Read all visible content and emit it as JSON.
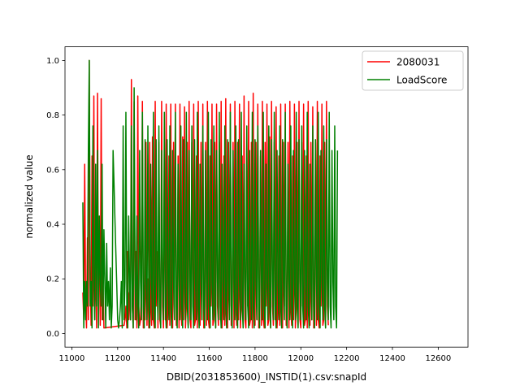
{
  "chart_data": {
    "type": "line",
    "title": "",
    "xlabel": "DBID(2031853600)_INSTID(1).csv:snapId",
    "ylabel": "normalized value",
    "xlim": [
      10970,
      12730
    ],
    "ylim": [
      -0.05,
      1.05
    ],
    "x_ticks": [
      11000,
      11200,
      11400,
      11600,
      11800,
      12000,
      12200,
      12400,
      12600
    ],
    "y_ticks": [
      0.0,
      0.2,
      0.4,
      0.6,
      0.8,
      1.0
    ],
    "x_tick_labels": [
      "11000",
      "11200",
      "11400",
      "11600",
      "11800",
      "12000",
      "12200",
      "12400",
      "12600"
    ],
    "y_tick_labels": [
      "0.0",
      "0.2",
      "0.4",
      "0.6",
      "0.8",
      "1.0"
    ],
    "grid": false,
    "legend_position": "top-right",
    "series": [
      {
        "name": "2080031",
        "color": "#ff0000",
        "x_start": 11048,
        "x_step": 4,
        "gaps": [
          [
            11140,
            11225
          ]
        ],
        "values": [
          0.15,
          0.05,
          0.62,
          0.12,
          0.02,
          0.35,
          0.05,
          1.0,
          0.2,
          0.03,
          0.65,
          0.1,
          0.87,
          0.05,
          0.3,
          0.02,
          0.88,
          0.1,
          0.4,
          0.03,
          0.86,
          0.05,
          0.2,
          0.02,
          0.82,
          0.1,
          0.05,
          0.3,
          0.02,
          0.78,
          0.05,
          0.1,
          0.02,
          0.65,
          0.05,
          0.2,
          0.02,
          0.05,
          0.1,
          0.02,
          0.03,
          0.05,
          0.02,
          0.12,
          0.2,
          0.03,
          0.05,
          0.1,
          0.02,
          0.3,
          0.05,
          0.15,
          0.05,
          0.93,
          0.1,
          0.02,
          0.85,
          0.05,
          0.3,
          0.02,
          0.87,
          0.1,
          0.03,
          0.05,
          0.2,
          0.85,
          0.02,
          0.1,
          0.05,
          0.7,
          0.03,
          0.2,
          0.02,
          0.7,
          0.1,
          0.03,
          0.72,
          0.05,
          0.02,
          0.85,
          0.1,
          0.3,
          0.02,
          0.7,
          0.05,
          0.03,
          0.85,
          0.1,
          0.02,
          0.7,
          0.05,
          0.84,
          0.02,
          0.1,
          0.65,
          0.03,
          0.84,
          0.05,
          0.02,
          0.7,
          0.2,
          0.84,
          0.03,
          0.05,
          0.65,
          0.02,
          0.84,
          0.1,
          0.03,
          0.72,
          0.05,
          0.83,
          0.02,
          0.1,
          0.7,
          0.03,
          0.85,
          0.05,
          0.02,
          0.7,
          0.1,
          0.84,
          0.03,
          0.05,
          0.65,
          0.02,
          0.85,
          0.1,
          0.03,
          0.7,
          0.05,
          0.84,
          0.02,
          0.1,
          0.7,
          0.03,
          0.85,
          0.05,
          0.02,
          0.65,
          0.1,
          0.84,
          0.03,
          0.05,
          0.7,
          0.02,
          0.84,
          0.1,
          0.03,
          0.7,
          0.05,
          0.85,
          0.02,
          0.1,
          0.65,
          0.03,
          0.86,
          0.05,
          0.02,
          0.7,
          0.1,
          0.84,
          0.03,
          0.05,
          0.7,
          0.02,
          0.85,
          0.1,
          0.03,
          0.7,
          0.05,
          0.84,
          0.02,
          0.1,
          0.65,
          0.03,
          0.87,
          0.05,
          0.02,
          0.7,
          0.1,
          0.85,
          0.03,
          0.05,
          0.7,
          0.02,
          0.88,
          0.1,
          0.03,
          0.7,
          0.05,
          0.84,
          0.02,
          0.1,
          0.65,
          0.03,
          0.85,
          0.05,
          0.02,
          0.7,
          0.1,
          0.84,
          0.03,
          0.05,
          0.72,
          0.02,
          0.85,
          0.1,
          0.03,
          0.7,
          0.05,
          0.83,
          0.02,
          0.1,
          0.65,
          0.03,
          0.84,
          0.05,
          0.02,
          0.7,
          0.1,
          0.84,
          0.03,
          0.05,
          0.7,
          0.02,
          0.85,
          0.1,
          0.03,
          0.65,
          0.05,
          0.84,
          0.02,
          0.1,
          0.7,
          0.03,
          0.85,
          0.05,
          0.02,
          0.7,
          0.1,
          0.84,
          0.03,
          0.05,
          0.65,
          0.02,
          0.85,
          0.1,
          0.03,
          0.7,
          0.05,
          0.83,
          0.02,
          0.1,
          0.7,
          0.03,
          0.85,
          0.05,
          0.02,
          0.65,
          0.1,
          0.84,
          0.03,
          0.05,
          0.7,
          0.02,
          0.85,
          0.1,
          0.03
        ]
      },
      {
        "name": "LoadScore",
        "color": "#008000",
        "x_start": 11048,
        "x_step": 4,
        "gaps": [],
        "values": [
          0.48,
          0.02,
          0.19,
          0.05,
          0.19,
          0.1,
          0.67,
          1.0,
          0.1,
          0.19,
          0.02,
          0.76,
          0.19,
          0.05,
          0.62,
          0.1,
          0.67,
          0.02,
          0.43,
          0.19,
          0.1,
          0.62,
          0.05,
          0.38,
          0.19,
          0.02,
          0.33,
          0.1,
          0.19,
          0.05,
          0.24,
          0.02,
          0.1,
          0.67,
          0.55,
          0.42,
          0.3,
          0.18,
          0.05,
          0.02,
          0.05,
          0.1,
          0.19,
          0.02,
          0.76,
          0.05,
          0.19,
          0.81,
          0.1,
          0.02,
          0.43,
          0.19,
          0.05,
          0.76,
          0.1,
          0.02,
          0.9,
          0.19,
          0.05,
          0.43,
          0.1,
          0.02,
          0.67,
          0.19,
          0.05,
          0.81,
          0.1,
          0.02,
          0.71,
          0.19,
          0.05,
          0.76,
          0.1,
          0.02,
          0.62,
          0.19,
          0.05,
          0.81,
          0.1,
          0.02,
          0.71,
          0.19,
          0.05,
          0.76,
          0.1,
          0.02,
          0.67,
          0.19,
          0.05,
          0.81,
          0.1,
          0.02,
          0.71,
          0.19,
          0.05,
          0.76,
          0.1,
          0.02,
          0.67,
          0.19,
          0.05,
          0.81,
          0.1,
          0.02,
          0.62,
          0.19,
          0.05,
          0.76,
          0.1,
          0.02,
          0.71,
          0.19,
          0.05,
          0.81,
          0.1,
          0.02,
          0.67,
          0.19,
          0.05,
          0.76,
          0.1,
          0.02,
          0.71,
          0.19,
          0.05,
          0.81,
          0.1,
          0.02,
          0.62,
          0.19,
          0.05,
          0.76,
          0.1,
          0.02,
          0.67,
          0.19,
          0.05,
          0.81,
          0.1,
          0.02,
          0.71,
          0.19,
          0.05,
          0.76,
          0.1,
          0.02,
          0.67,
          0.19,
          0.05,
          0.81,
          0.1,
          0.02,
          0.62,
          0.19,
          0.05,
          0.76,
          0.1,
          0.02,
          0.71,
          0.19,
          0.05,
          0.81,
          0.1,
          0.02,
          0.67,
          0.19,
          0.05,
          0.76,
          0.1,
          0.02,
          0.71,
          0.19,
          0.05,
          0.81,
          0.1,
          0.02,
          0.62,
          0.19,
          0.05,
          0.76,
          0.1,
          0.02,
          0.67,
          0.19,
          0.05,
          0.81,
          0.1,
          0.02,
          0.71,
          0.19,
          0.05,
          0.76,
          0.1,
          0.02,
          0.67,
          0.19,
          0.05,
          0.81,
          0.1,
          0.02,
          0.62,
          0.19,
          0.05,
          0.76,
          0.1,
          0.02,
          0.71,
          0.19,
          0.05,
          0.81,
          0.1,
          0.02,
          0.67,
          0.19,
          0.05,
          0.76,
          0.1,
          0.02,
          0.71,
          0.19,
          0.05,
          0.81,
          0.1,
          0.02,
          0.62,
          0.19,
          0.05,
          0.76,
          0.1,
          0.02,
          0.67,
          0.19,
          0.05,
          0.81,
          0.1,
          0.02,
          0.71,
          0.19,
          0.05,
          0.76,
          0.1,
          0.02,
          0.67,
          0.19,
          0.05,
          0.81,
          0.1,
          0.02,
          0.62,
          0.19,
          0.05,
          0.76,
          0.1,
          0.02,
          0.71,
          0.19,
          0.05,
          0.81,
          0.1,
          0.02,
          0.67,
          0.19,
          0.05,
          0.76,
          0.1,
          0.02,
          0.71,
          0.19,
          0.05,
          0.81,
          0.1,
          0.02,
          0.67,
          0.19,
          0.05,
          0.76,
          0.1,
          0.02,
          0.67
        ]
      }
    ]
  }
}
